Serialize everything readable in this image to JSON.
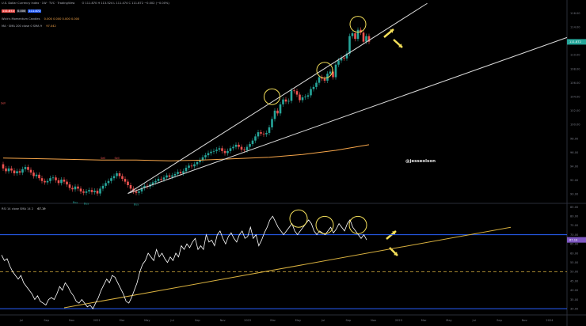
{
  "header": {
    "title": "U.S. Dollar Currency Index · 1W · TVC · TradingView",
    "ohlc": "O 111.870  H 113.524  L 111.474  C 111.872  −0.002 (−0.00%)",
    "price_box_1": "111.872",
    "price_box_2": "0.000",
    "price_box_3": "111.872",
    "indicator_1": "Wick's Momentum Candles",
    "indicator_1_values": "0.000  0.000  0.000  0.000",
    "indicator_2": "MA · SMA 200 close 0 SMA 9",
    "indicator_2_value": "97.042",
    "rsi_label": "RSI 14 close SMA 14 2",
    "rsi_value": "67.19"
  },
  "watermark": "@jesseolson",
  "colors": {
    "background": "#000000",
    "up_candle": "#26a69a",
    "down_candle": "#ef5350",
    "sma200": "#f7a64a",
    "trendline": "#d9d9d9",
    "circle": "#f5e05a",
    "arrow": "#f5e05a",
    "rsi_line": "#ffffff",
    "rsi_trendline": "#d9b13f",
    "rsi_level_line": "#2962ff",
    "rsi_mid_line": "#d9b13f",
    "price_tag": "#26a69a"
  },
  "signals": [
    "Sell",
    "Buy",
    "Sell",
    "Sell",
    "Buy",
    "Buy"
  ],
  "chart_data": [
    {
      "type": "candlestick",
      "title": "U.S. Dollar Currency Index",
      "x_axis_labels": [
        "Jul",
        "Sep",
        "Nov",
        "2021",
        "Mar",
        "May",
        "Jul",
        "Sep",
        "Nov",
        "2022",
        "Mar",
        "May",
        "Jul",
        "Sep",
        "Nov",
        "2023",
        "Mar",
        "May",
        "Jul",
        "Sep",
        "Nov",
        "2024"
      ],
      "y_axis_ticks": [
        90,
        92,
        94,
        96,
        98,
        100,
        102,
        104,
        106,
        108,
        110,
        112,
        114,
        116
      ],
      "ylim": [
        88.8,
        117.2
      ],
      "last_price": 111.872,
      "close_series": [
        93.7,
        93.3,
        93.7,
        93.4,
        93.0,
        93.3,
        93.1,
        93.6,
        93.9,
        93.5,
        93.1,
        92.6,
        92.8,
        92.3,
        91.9,
        91.7,
        91.9,
        92.3,
        92.4,
        92.0,
        91.6,
        92.1,
        91.8,
        91.4,
        90.9,
        90.7,
        91.1,
        90.8,
        90.4,
        90.2,
        90.4,
        90.6,
        90.3,
        90.5,
        90.1,
        90.8,
        91.2,
        91.6,
        91.9,
        92.3,
        92.6,
        93.0,
        92.6,
        92.2,
        91.8,
        91.3,
        90.8,
        90.4,
        90.2,
        90.4,
        90.9,
        91.2,
        91.1,
        91.4,
        91.7,
        91.9,
        92.2,
        92.1,
        92.4,
        92.7,
        92.5,
        92.7,
        92.9,
        93.2,
        93.0,
        93.3,
        93.8,
        94.1,
        94.0,
        94.3,
        94.6,
        94.9,
        95.3,
        95.6,
        95.9,
        96.1,
        96.2,
        96.4,
        96.6,
        96.2,
        95.9,
        96.2,
        96.6,
        96.8,
        97.1,
        96.8,
        96.4,
        96.3,
        96.8,
        97.2,
        97.7,
        98.3,
        98.9,
        98.7,
        98.6,
        98.8,
        99.6,
        100.8,
        102.0,
        101.6,
        102.9,
        103.6,
        103.3,
        103.4,
        104.9,
        104.8,
        104.3,
        103.5,
        103.9,
        104.0,
        104.2,
        105.1,
        105.4,
        106.0,
        106.8,
        106.6,
        106.3,
        107.3,
        107.6,
        106.8,
        108.6,
        109.2,
        109.6,
        109.5,
        110.2,
        112.7,
        113.1,
        112.3,
        113.6,
        113.2,
        111.9,
        112.7,
        111.9
      ],
      "series": [
        {
          "name": "SMA 200",
          "values": [
            95.2,
            95.1,
            95.0,
            94.9,
            94.9,
            94.8,
            94.9,
            95.1,
            95.3,
            95.7,
            96.3,
            97.1
          ]
        }
      ],
      "annotations": [
        {
          "type": "circle",
          "label": "top 1",
          "x_index": 97,
          "y": 104.0
        },
        {
          "type": "circle",
          "label": "top 2",
          "x_index": 116,
          "y": 107.8
        },
        {
          "type": "circle",
          "label": "top 3",
          "x_index": 128,
          "y": 114.4
        },
        {
          "type": "trendline",
          "label": "steep support"
        },
        {
          "type": "trendline",
          "label": "long support"
        },
        {
          "type": "arrow",
          "label": "up arrow"
        },
        {
          "type": "arrow",
          "label": "down arrow"
        }
      ]
    },
    {
      "type": "line",
      "title": "RSI 14",
      "y_axis_ticks": [
        30,
        35,
        40,
        45,
        50,
        55,
        60,
        65,
        70,
        75,
        80,
        85
      ],
      "ylim": [
        27.5,
        86.5
      ],
      "levels": {
        "upper": 70,
        "middle": 50,
        "lower": 30
      },
      "last_value": 67.19,
      "values": [
        59,
        56,
        57,
        53,
        50,
        48,
        46,
        48,
        44,
        42,
        40,
        38,
        35,
        37,
        34,
        33,
        32,
        35,
        36,
        35,
        38,
        42,
        40,
        44,
        42,
        39,
        37,
        34,
        33,
        35,
        33,
        31,
        32,
        30,
        33,
        36,
        40,
        43,
        46,
        44,
        48,
        47,
        44,
        41,
        38,
        34,
        33,
        36,
        40,
        44,
        50,
        54,
        56,
        60,
        58,
        56,
        62,
        58,
        60,
        57,
        55,
        58,
        56,
        60,
        58,
        64,
        62,
        65,
        63,
        66,
        68,
        62,
        64,
        62,
        70,
        66,
        67,
        64,
        70,
        72,
        68,
        65,
        69,
        71,
        68,
        66,
        70,
        72,
        68,
        69,
        74,
        68,
        70,
        64,
        67,
        71,
        74,
        78,
        80,
        77,
        74,
        72,
        70,
        72,
        74,
        76,
        72,
        70,
        72,
        74,
        76,
        78,
        76,
        72,
        70,
        72,
        71,
        70,
        72,
        74,
        71,
        73,
        76,
        74,
        72,
        76,
        78,
        74,
        72,
        70,
        68,
        70,
        67.19
      ],
      "annotations": [
        {
          "type": "circle",
          "label": "rsi top 1",
          "y": 80
        },
        {
          "type": "circle",
          "label": "rsi top 2",
          "y": 76
        },
        {
          "type": "circle",
          "label": "rsi top 3",
          "y": 76
        },
        {
          "type": "trendline",
          "label": "rsi support"
        },
        {
          "type": "arrow",
          "label": "rsi up arrow"
        },
        {
          "type": "arrow",
          "label": "rsi down arrow"
        }
      ]
    }
  ]
}
